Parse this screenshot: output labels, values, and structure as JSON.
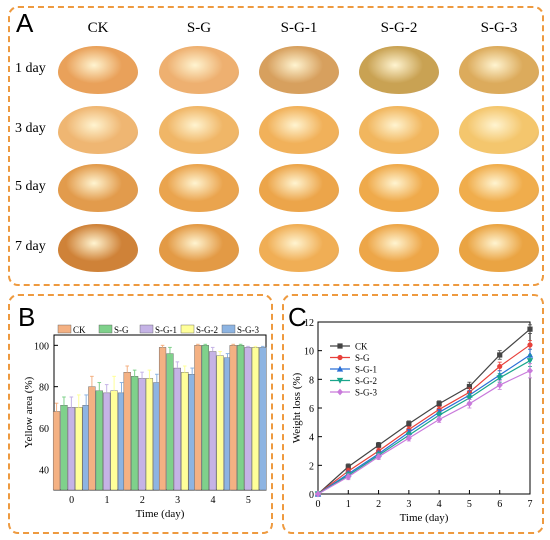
{
  "panel_a": {
    "letter": "A",
    "columns": [
      "CK",
      "S-G",
      "S-G-1",
      "S-G-2",
      "S-G-3"
    ],
    "rows": [
      "1 day",
      "3 day",
      "5 day",
      "7 day"
    ],
    "fruit_colors": [
      [
        "#e9a15a",
        "#eeb070",
        "#d7a05e",
        "#c9a253",
        "#dcab5c"
      ],
      [
        "#efb672",
        "#f0b667",
        "#f1b15a",
        "#f1b65e",
        "#f4c66d"
      ],
      [
        "#e29b4c",
        "#eaa44e",
        "#eca54a",
        "#efaa4b",
        "#f0ad4c"
      ],
      [
        "#cf8238",
        "#e39a45",
        "#f0ae55",
        "#eda648",
        "#eaa443"
      ]
    ]
  },
  "chart_data": [
    {
      "panel": "B",
      "type": "bar",
      "xlabel": "Time (day)",
      "ylabel": "Yellow area (%)",
      "ylim": [
        30,
        105
      ],
      "yticks": [
        40,
        60,
        80,
        100
      ],
      "categories": [
        "0",
        "1",
        "2",
        "3",
        "4",
        "5"
      ],
      "legend_position": "top",
      "series": [
        {
          "name": "CK",
          "color": "#f4b183",
          "values": [
            68,
            80,
            87,
            99,
            100,
            100
          ],
          "errors": [
            4,
            5,
            3,
            1,
            0.5,
            0.5
          ]
        },
        {
          "name": "S-G",
          "color": "#7fd18b",
          "values": [
            71,
            78,
            85,
            96,
            100,
            100
          ],
          "errors": [
            4,
            4,
            3,
            3,
            0.5,
            0.5
          ]
        },
        {
          "name": "S-G-1",
          "color": "#c5b3e6",
          "values": [
            70,
            77,
            84,
            89,
            97,
            99
          ],
          "errors": [
            5,
            4,
            3,
            3,
            2,
            0.5
          ]
        },
        {
          "name": "S-G-2",
          "color": "#ffff99",
          "values": [
            70,
            78,
            84,
            87,
            95,
            99
          ],
          "errors": [
            6,
            7,
            4,
            3,
            2,
            0.5
          ]
        },
        {
          "name": "S-G-3",
          "color": "#8db4e2",
          "values": [
            71,
            77,
            82,
            86,
            94,
            99
          ],
          "errors": [
            5,
            5,
            4,
            3,
            2,
            0.5
          ]
        }
      ]
    },
    {
      "panel": "C",
      "type": "line",
      "xlabel": "Time (day)",
      "ylabel": "Weight loss (%)",
      "xlim": [
        0,
        7
      ],
      "ylim": [
        0,
        12
      ],
      "xticks": [
        0,
        1,
        2,
        3,
        4,
        5,
        6,
        7
      ],
      "yticks": [
        0,
        2,
        4,
        6,
        8,
        10,
        12
      ],
      "x": [
        0,
        1,
        2,
        3,
        4,
        5,
        6,
        7
      ],
      "legend_position": "top-left",
      "series": [
        {
          "name": "CK",
          "color": "#444444",
          "marker": "square",
          "values": [
            0,
            1.9,
            3.4,
            4.9,
            6.3,
            7.5,
            9.7,
            11.5
          ],
          "errors": [
            0,
            0.2,
            0.2,
            0.2,
            0.2,
            0.3,
            0.3,
            0.3
          ]
        },
        {
          "name": "S-G",
          "color": "#e8403a",
          "marker": "circle",
          "values": [
            0,
            1.6,
            3.0,
            4.5,
            5.9,
            7.1,
            8.9,
            10.4
          ],
          "errors": [
            0,
            0.2,
            0.2,
            0.2,
            0.2,
            0.3,
            0.3,
            0.3
          ]
        },
        {
          "name": "S-G-1",
          "color": "#2a6fd6",
          "marker": "triangle-up",
          "values": [
            0,
            1.4,
            2.8,
            4.3,
            5.7,
            6.9,
            8.3,
            9.7
          ],
          "errors": [
            0,
            0.2,
            0.2,
            0.2,
            0.2,
            0.3,
            0.3,
            0.4
          ]
        },
        {
          "name": "S-G-2",
          "color": "#1aa68c",
          "marker": "triangle-down",
          "values": [
            0,
            1.3,
            2.7,
            4.1,
            5.5,
            6.7,
            8.1,
            9.3
          ],
          "errors": [
            0,
            0.2,
            0.2,
            0.2,
            0.2,
            0.3,
            0.3,
            0.4
          ]
        },
        {
          "name": "S-G-3",
          "color": "#c97adb",
          "marker": "diamond",
          "values": [
            0,
            1.2,
            2.6,
            3.9,
            5.2,
            6.3,
            7.6,
            8.6
          ],
          "errors": [
            0,
            0.2,
            0.2,
            0.2,
            0.2,
            0.3,
            0.3,
            0.5
          ]
        }
      ]
    }
  ]
}
